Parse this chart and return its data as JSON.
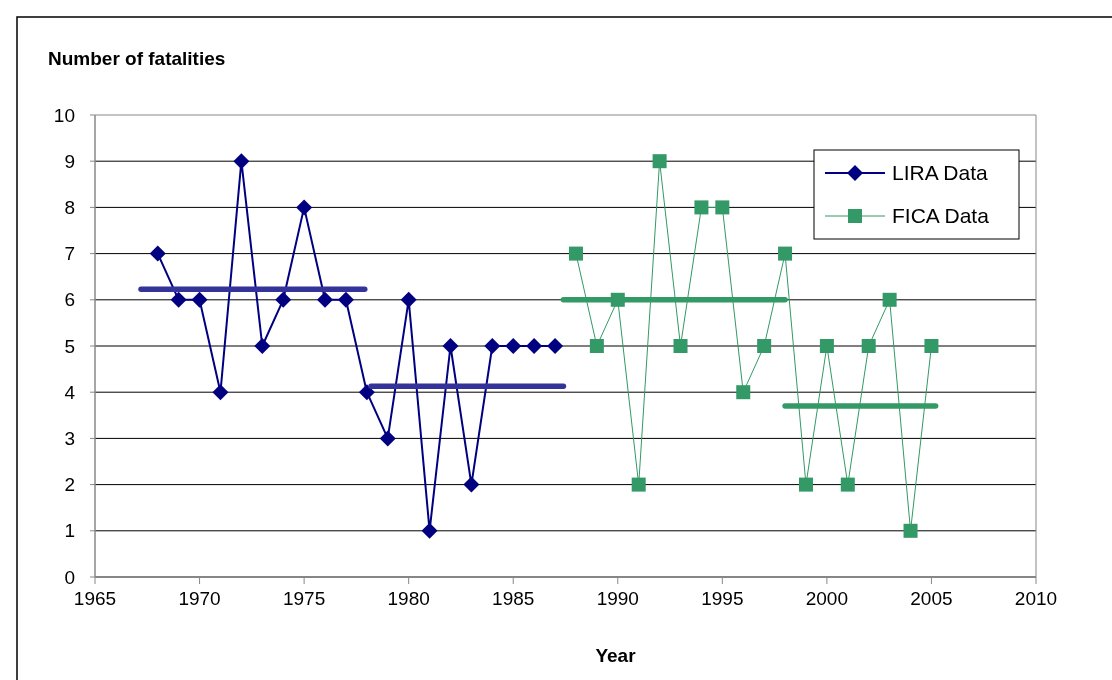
{
  "chart_data": {
    "type": "line",
    "ylabel": "Number of fatalities",
    "xlabel": "Year",
    "xlim": [
      1965,
      2010
    ],
    "xticks": [
      1965,
      1970,
      1975,
      1980,
      1985,
      1990,
      1995,
      2000,
      2005,
      2010
    ],
    "ylim": [
      0,
      10
    ],
    "yticks": [
      0,
      1,
      2,
      3,
      4,
      5,
      6,
      7,
      8,
      9,
      10
    ],
    "grid": "y",
    "legend": "top right",
    "series": [
      {
        "name": "LIRA Data",
        "color": "#000080",
        "marker": "diamond",
        "x": [
          1968,
          1969,
          1970,
          1971,
          1972,
          1973,
          1974,
          1975,
          1976,
          1977,
          1978,
          1979,
          1980,
          1981,
          1982,
          1983,
          1984,
          1985,
          1986,
          1987
        ],
        "values": [
          7,
          6,
          6,
          4,
          9,
          5,
          6,
          8,
          6,
          6,
          4,
          3,
          6,
          1,
          5,
          2,
          5,
          5,
          5,
          5
        ]
      },
      {
        "name": "FICA Data",
        "color": "#339966",
        "marker": "square",
        "x": [
          1988,
          1989,
          1990,
          1991,
          1992,
          1993,
          1994,
          1995,
          1996,
          1997,
          1998,
          1999,
          2000,
          2001,
          2002,
          2003,
          2004,
          2005
        ],
        "values": [
          7,
          5,
          6,
          2,
          9,
          5,
          8,
          8,
          4,
          5,
          7,
          2,
          5,
          2,
          5,
          6,
          1,
          5
        ]
      },
      {
        "color": "#333399",
        "marker": "none",
        "x": [
          1967.2,
          1977.9
        ],
        "values": [
          6.23,
          6.23
        ]
      },
      {
        "color": "#333399",
        "marker": "none",
        "x": [
          1978.2,
          1987.4
        ],
        "values": [
          4.13,
          4.13
        ]
      },
      {
        "color": "#339966",
        "marker": "none",
        "x": [
          1987.4,
          1998.0
        ],
        "values": [
          6.0,
          6.0
        ]
      },
      {
        "color": "#339966",
        "marker": "none",
        "x": [
          1998.0,
          2005.2
        ],
        "values": [
          3.7,
          3.7
        ]
      }
    ]
  }
}
